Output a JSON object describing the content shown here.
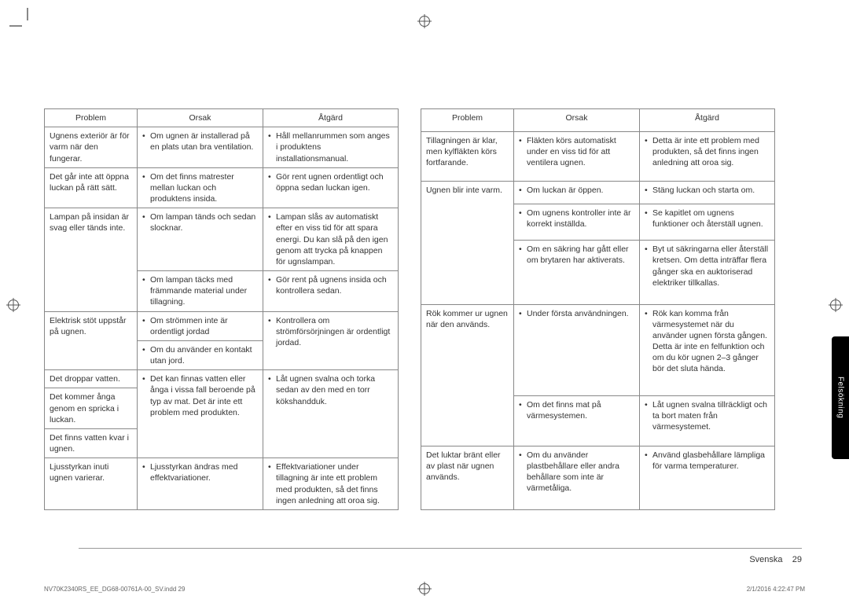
{
  "headers": {
    "c1": "Problem",
    "c2": "Orsak",
    "c3": "Åtgärd"
  },
  "sideTab": "Felsökning",
  "footer": {
    "lang": "Svenska",
    "page": "29"
  },
  "footline": {
    "left": "NV70K2340RS_EE_DG68-00761A-00_SV.indd   29",
    "right": "2/1/2016   4:22:47 PM"
  },
  "left": [
    {
      "problem": "Ugnens exteriör är för varm när den fungerar.",
      "rows": [
        {
          "o": "Om ugnen är installerad på en plats utan bra ventilation.",
          "a": "Håll mellanrummen som anges i produktens installationsmanual."
        }
      ]
    },
    {
      "problem": "Det går inte att öppna luckan på rätt sätt.",
      "rows": [
        {
          "o": "Om det finns matrester mellan luckan och produktens insida.",
          "a": "Gör rent ugnen ordentligt och öppna sedan luckan igen."
        }
      ]
    },
    {
      "problem": "Lampan på insidan är svag eller tänds inte.",
      "rows": [
        {
          "o": "Om lampan tänds och sedan slocknar.",
          "a": "Lampan slås av automatiskt efter en viss tid för att spara energi. Du kan slå på den igen genom att trycka på knappen för ugnslampan."
        },
        {
          "o": "Om lampan täcks med främmande material under tillagning.",
          "a": "Gör rent på ugnens insida och kontrollera sedan."
        }
      ]
    },
    {
      "problem": "Elektrisk stöt uppstår på ugnen.",
      "rowspanAction": true,
      "actionMerged": "Kontrollera om strömförsörjningen är ordentligt jordad.",
      "rows": [
        {
          "o": "Om strömmen inte är ordentligt jordad"
        },
        {
          "o": "Om du använder en kontakt utan jord."
        }
      ]
    },
    {
      "problems": [
        "Det droppar vatten.",
        "Det kommer ånga genom en spricka i luckan.",
        "Det finns vatten kvar i ugnen."
      ],
      "rows": [
        {
          "o": "Det kan finnas vatten eller ånga i vissa fall beroende på typ av mat. Det är inte ett problem med produkten.",
          "a": "Låt ugnen svalna och torka sedan av den med en torr kökshandduk."
        }
      ]
    },
    {
      "problem": "Ljusstyrkan inuti ugnen varierar.",
      "rows": [
        {
          "o": "Ljusstyrkan ändras med effektvariationer.",
          "a": "Effektvariationer under tillagning är inte ett problem med produkten, så det finns ingen anledning att oroa sig."
        }
      ]
    }
  ],
  "right": [
    {
      "problem": "Tillagningen är klar, men kylfläkten körs fortfarande.",
      "rows": [
        {
          "o": "Fläkten körs automatiskt under en viss tid för att ventilera ugnen.",
          "a": "Detta är inte ett problem med produkten, så det finns ingen anledning att oroa sig."
        }
      ]
    },
    {
      "problem": "Ugnen blir inte varm.",
      "rows": [
        {
          "o": "Om luckan är öppen.",
          "a": "Stäng luckan och starta om."
        },
        {
          "o": "Om ugnens kontroller inte är korrekt inställda.",
          "a": "Se kapitlet om ugnens funktioner och återställ ugnen."
        },
        {
          "o": "Om en säkring har gått eller om brytaren har aktiverats.",
          "a": "Byt ut säkringarna eller återställ kretsen. Om detta inträffar flera gånger ska en auktoriserad elektriker tillkallas."
        }
      ]
    },
    {
      "problem": "Rök kommer ur ugnen när den används.",
      "rows": [
        {
          "o": "Under första användningen.",
          "a": "Rök kan komma från värmesystemet när du använder ugnen första gången. Detta är inte en felfunktion och om du kör ugnen 2–3 gånger bör det sluta hända."
        },
        {
          "o": "Om det finns mat på värmesystemen.",
          "a": "Låt ugnen svalna tillräckligt och ta bort maten från värmesystemet."
        }
      ]
    },
    {
      "problem": "Det luktar bränt eller av plast när ugnen används.",
      "rows": [
        {
          "o": "Om du använder plastbehållare eller andra behållare som inte är värmetåliga.",
          "a": "Använd glasbehållare lämpliga för varma temperaturer."
        }
      ]
    }
  ]
}
